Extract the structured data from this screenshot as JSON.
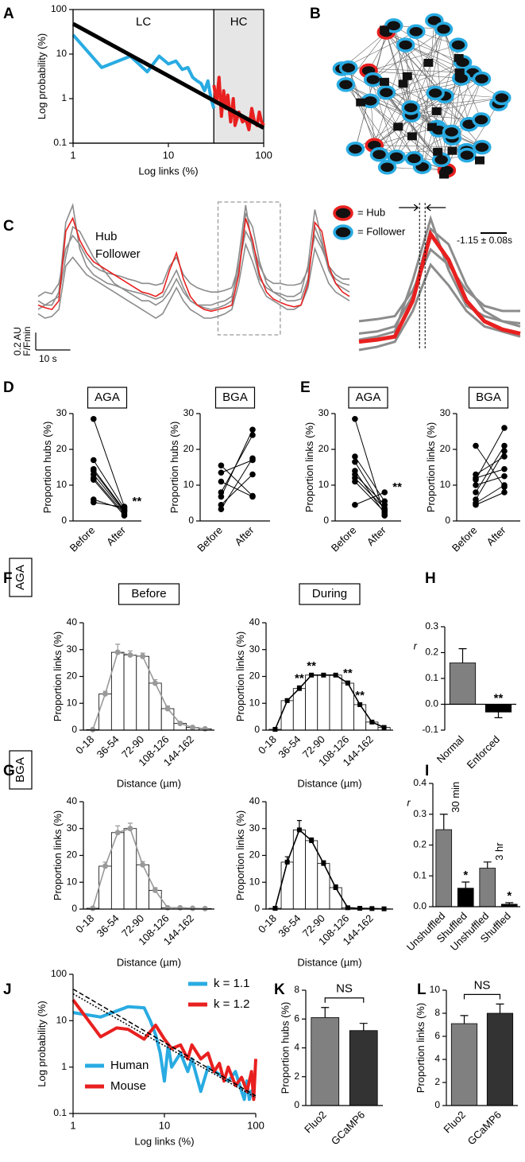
{
  "chart_data": [
    {
      "panel": "A",
      "type": "line",
      "xlabel": "Log links (%)",
      "ylabel": "Log probability (%)",
      "xlog": true,
      "ylog": true,
      "xlim": [
        1,
        100
      ],
      "ylim": [
        0.1,
        100
      ],
      "xticks": [
        1,
        10,
        100
      ],
      "yticks": [
        0.1,
        1,
        10,
        100
      ],
      "regions": [
        {
          "label": "LC",
          "xlim": [
            1,
            30
          ]
        },
        {
          "label": "HC",
          "xlim": [
            30,
            100
          ],
          "color": "#e6e6e6"
        }
      ],
      "series": [
        {
          "color": "#29abe2",
          "x": [
            1,
            2,
            4,
            6,
            8,
            10,
            12,
            14,
            16,
            18,
            20,
            22,
            24,
            26,
            28,
            30
          ],
          "values": [
            27,
            5,
            9,
            4,
            9,
            6,
            7,
            4.5,
            5,
            3,
            2.5,
            2.2,
            1.5,
            2.5,
            1,
            0.6
          ]
        },
        {
          "color": "#e8201f",
          "x": [
            30,
            32,
            34,
            36,
            38,
            40,
            42,
            45,
            48,
            50,
            55,
            60,
            65,
            70,
            75,
            80,
            85,
            90,
            95,
            100
          ],
          "values": [
            2,
            0.8,
            3,
            0.4,
            1.5,
            0.6,
            1.2,
            0.3,
            1,
            0.25,
            0.5,
            0.3,
            0.35,
            0.2,
            0.6,
            0.3,
            0.25,
            0.5,
            0.3,
            0.25
          ]
        }
      ],
      "fits": [
        {
          "color": "#000000",
          "x": [
            1,
            100
          ],
          "values": [
            48,
            0.22
          ]
        }
      ]
    },
    {
      "panel": "B",
      "type": "network",
      "legend": [
        {
          "name": "= Hub",
          "color": "#e8201f"
        },
        {
          "name": "= Follower",
          "color": "#29abe2"
        }
      ]
    },
    {
      "panel": "C",
      "type": "trace",
      "x": [
        0,
        2,
        4,
        6,
        8,
        10,
        12,
        14,
        16,
        18,
        20,
        22,
        24,
        26,
        28,
        30,
        32,
        34,
        36,
        38,
        40,
        42,
        44,
        46,
        48,
        50,
        52,
        54,
        56,
        58,
        60,
        62,
        64,
        66,
        68,
        70,
        72,
        74,
        76,
        78,
        80,
        82,
        84,
        86,
        88,
        90
      ],
      "series": [
        {
          "name": "Follower",
          "color": "#8c8c8c",
          "values": [
            0.1,
            0.05,
            0.05,
            0.2,
            1.0,
            1.2,
            0.7,
            0.5,
            0.4,
            0.35,
            0.3,
            0.28,
            0.25,
            0.22,
            0.2,
            0.18,
            0.15,
            0.12,
            0.15,
            0.3,
            0.45,
            0.25,
            0.1,
            0.05,
            0.02,
            0.0,
            0.02,
            0.05,
            0.1,
            0.6,
            1.2,
            0.7,
            0.35,
            0.25,
            0.2,
            0.18,
            0.15,
            0.15,
            0.2,
            0.5,
            1.15,
            0.8,
            0.45,
            0.35,
            0.3,
            0.28
          ]
        },
        {
          "color": "#8c8c8c",
          "values": [
            -0.05,
            -0.1,
            -0.08,
            0.0,
            0.5,
            0.6,
            0.5,
            0.4,
            0.35,
            0.3,
            0.25,
            0.2,
            0.15,
            0.1,
            0.05,
            0.0,
            -0.05,
            -0.1,
            -0.05,
            0.1,
            0.25,
            0.1,
            0.0,
            -0.05,
            -0.1,
            -0.1,
            -0.08,
            -0.05,
            0.0,
            0.3,
            0.75,
            0.55,
            0.3,
            0.15,
            0.1,
            0.05,
            0.0,
            0.0,
            0.05,
            0.25,
            0.7,
            0.5,
            0.3,
            0.2,
            0.15,
            0.1
          ]
        },
        {
          "color": "#8c8c8c",
          "values": [
            0.15,
            0.2,
            0.18,
            0.3,
            0.7,
            0.85,
            0.75,
            0.6,
            0.5,
            0.45,
            0.42,
            0.4,
            0.38,
            0.35,
            0.33,
            0.3,
            0.3,
            0.28,
            0.3,
            0.5,
            0.6,
            0.4,
            0.3,
            0.25,
            0.22,
            0.2,
            0.2,
            0.22,
            0.25,
            0.5,
            0.9,
            0.75,
            0.5,
            0.35,
            0.3,
            0.3,
            0.28,
            0.28,
            0.3,
            0.45,
            0.85,
            0.7,
            0.5,
            0.4,
            0.35,
            0.35
          ]
        },
        {
          "color": "#8c8c8c",
          "values": [
            0.0,
            0.05,
            0.1,
            0.15,
            0.6,
            0.95,
            0.9,
            0.75,
            0.6,
            0.5,
            0.4,
            0.3,
            0.25,
            0.2,
            0.15,
            0.1,
            0.1,
            0.05,
            0.1,
            0.2,
            0.35,
            0.2,
            0.1,
            0.05,
            0.05,
            0.05,
            0.08,
            0.1,
            0.15,
            0.45,
            1.1,
            0.95,
            0.55,
            0.3,
            0.2,
            0.15,
            0.1,
            0.1,
            0.12,
            0.35,
            0.95,
            0.75,
            0.45,
            0.3,
            0.25,
            0.2
          ]
        },
        {
          "name": "Hub",
          "color": "#e8201f",
          "values": [
            0.05,
            0.02,
            0.0,
            0.1,
            0.9,
            1.05,
            0.8,
            0.65,
            0.55,
            0.5,
            0.45,
            0.4,
            0.35,
            0.3,
            0.25,
            0.2,
            0.18,
            0.15,
            0.2,
            0.45,
            0.65,
            0.35,
            0.15,
            0.05,
            0.0,
            -0.02,
            0.0,
            0.02,
            0.05,
            0.4,
            1.05,
            0.8,
            0.4,
            0.2,
            0.12,
            0.08,
            0.05,
            0.03,
            0.05,
            0.3,
            1.0,
            0.9,
            0.5,
            0.3,
            0.2,
            0.15
          ]
        }
      ],
      "scalebar": {
        "y": 0.2,
        "y_label": "0.2 AU",
        "y_unit": "F/Fmin",
        "x": 10,
        "x_label": "10 s"
      },
      "zoom_xlim": [
        52,
        70
      ],
      "annotation": "-1.15 ± 0.08s"
    },
    {
      "panel": "D",
      "type": "paired",
      "title": "AGA",
      "ylabel": "Proportion hubs (%)",
      "categories": [
        "Before",
        "After"
      ],
      "ylim": [
        0,
        30
      ],
      "yticks": [
        0,
        10,
        20,
        30
      ],
      "values": [
        [
          28.5,
          4
        ],
        [
          17,
          3.5
        ],
        [
          14.5,
          3
        ],
        [
          14,
          2.8
        ],
        [
          13,
          2.5
        ],
        [
          12,
          2
        ],
        [
          11.5,
          1.5
        ],
        [
          6,
          3.2
        ],
        [
          5.2,
          3.8
        ]
      ],
      "significance": [
        null,
        "**"
      ]
    },
    {
      "type": "paired",
      "title": "BGA",
      "ylabel": "Proportion hubs (%)",
      "categories": [
        "Before",
        "After"
      ],
      "ylim": [
        0,
        30
      ],
      "yticks": [
        0,
        10,
        20,
        30
      ],
      "values": [
        [
          15.5,
          7
        ],
        [
          13.5,
          17
        ],
        [
          11,
          6.8
        ],
        [
          8,
          24
        ],
        [
          6.8,
          25.5
        ],
        [
          4.5,
          13
        ],
        [
          3.3,
          17.5
        ]
      ]
    },
    {
      "panel": "E",
      "type": "paired",
      "title": "AGA",
      "ylabel": "Proportion links (%)",
      "categories": [
        "Before",
        "After"
      ],
      "ylim": [
        0,
        30
      ],
      "yticks": [
        0,
        10,
        20,
        30
      ],
      "values": [
        [
          28.5,
          1.5
        ],
        [
          18,
          5.5
        ],
        [
          16.5,
          3
        ],
        [
          14,
          2
        ],
        [
          13,
          4.5
        ],
        [
          12,
          3.5
        ],
        [
          11,
          2.5
        ],
        [
          4.5,
          8
        ]
      ],
      "significance": [
        null,
        "**"
      ]
    },
    {
      "type": "paired",
      "title": "BGA",
      "ylabel": "Proportion links (%)",
      "categories": [
        "Before",
        "After"
      ],
      "ylim": [
        0,
        30
      ],
      "yticks": [
        0,
        10,
        20,
        30
      ],
      "values": [
        [
          21,
          9.5
        ],
        [
          13,
          18
        ],
        [
          12,
          14.5
        ],
        [
          11.5,
          26
        ],
        [
          10,
          12.5
        ],
        [
          8,
          21
        ],
        [
          6,
          19.5
        ],
        [
          5,
          10
        ],
        [
          4.5,
          8
        ]
      ]
    },
    {
      "panel": "F",
      "row_label": "AGA",
      "type": "barline",
      "title": "Before",
      "ylabel": "Proportion links (%)",
      "xlabel": "Distance (µm)",
      "categories": [
        "0-18",
        null,
        "36-54",
        null,
        "72-90",
        null,
        "108-126",
        null,
        "144-162",
        null
      ],
      "ylim": [
        0,
        40
      ],
      "yticks": [
        0,
        10,
        20,
        30,
        40
      ],
      "color": "#999999",
      "values": [
        0.2,
        13.5,
        29,
        28,
        27.5,
        17.5,
        8,
        2.5,
        1,
        0.5
      ],
      "errors": [
        0.1,
        1,
        3,
        1.5,
        1.2,
        1.3,
        1,
        0.5,
        0.3,
        0.2
      ]
    },
    {
      "type": "barline",
      "title": "During",
      "ylabel": "Proportion links (%)",
      "xlabel": "Distance (µm)",
      "categories": [
        "0-18",
        null,
        "36-54",
        null,
        "72-90",
        null,
        "108-126",
        null,
        "144-162",
        null
      ],
      "ylim": [
        0,
        40
      ],
      "yticks": [
        0,
        10,
        20,
        30,
        40
      ],
      "color": "#000000",
      "values": [
        0.3,
        11,
        15.5,
        20.5,
        20.5,
        20.5,
        17.5,
        9.5,
        3,
        1
      ],
      "errors": [
        0.1,
        0.7,
        1,
        0.5,
        0.4,
        0.5,
        0.8,
        0.6,
        0.3,
        0.2
      ],
      "significance": [
        null,
        null,
        "**",
        "**",
        null,
        null,
        "**",
        "**",
        null,
        null
      ]
    },
    {
      "panel": "H",
      "type": "bar",
      "ylabel": "r",
      "categories": [
        "Normal",
        "Enforced"
      ],
      "values": [
        0.16,
        -0.03
      ],
      "errors": [
        0.055,
        0.022
      ],
      "colors": [
        "#808080",
        "#000000"
      ],
      "ylim": [
        -0.1,
        0.3
      ],
      "yticks": [
        -0.1,
        {
          "value": 0,
          "label": "0.0"
        },
        0.1,
        0.2,
        0.3
      ],
      "significance": [
        null,
        "**"
      ]
    },
    {
      "panel": "G",
      "row_label": "BGA",
      "type": "barline",
      "ylabel": "Proportion links (%)",
      "xlabel": "Distance (µm)",
      "categories": [
        "0-18",
        null,
        "36-54",
        null,
        "72-90",
        null,
        "108-126",
        null,
        "144-162",
        null
      ],
      "ylim": [
        0,
        40
      ],
      "yticks": [
        0,
        10,
        20,
        30,
        40
      ],
      "color": "#999999",
      "values": [
        0.3,
        16,
        28.5,
        30,
        16.5,
        7,
        0.5,
        0.5,
        0.3,
        0.2
      ],
      "errors": [
        0.1,
        1.5,
        2.5,
        2,
        1.2,
        1,
        0.2,
        0.2,
        0.1,
        0.1
      ]
    },
    {
      "type": "barline",
      "ylabel": "Proportion links (%)",
      "xlabel": "Distance (µm)",
      "categories": [
        "0-18",
        null,
        "36-54",
        null,
        "72-90",
        null,
        "108-126",
        null,
        "144-162",
        null
      ],
      "ylim": [
        0,
        40
      ],
      "yticks": [
        0,
        10,
        20,
        30,
        40
      ],
      "color": "#000000",
      "values": [
        0.3,
        17.5,
        29.5,
        25.5,
        17,
        8,
        0.5,
        0.3,
        0.2,
        0.1
      ],
      "errors": [
        0.1,
        2,
        3.5,
        1,
        1,
        1,
        0.2,
        0.1,
        0.1,
        0.1
      ]
    },
    {
      "panel": "I",
      "type": "bar",
      "ylabel": "r",
      "categories": [
        "Unshuffled",
        "Shuffled",
        "Unshuffled",
        "Shuffled"
      ],
      "values": [
        0.25,
        0.06,
        0.125,
        0.008
      ],
      "errors": [
        0.05,
        0.02,
        0.02,
        0.005
      ],
      "colors": [
        "#808080",
        "#000000",
        "#808080",
        "#000000"
      ],
      "ylim": [
        0,
        0.4
      ],
      "yticks": [
        {
          "value": 0,
          "label": "0.0"
        },
        0.1,
        0.2,
        0.3,
        0.4
      ],
      "significance": [
        null,
        "*",
        null,
        "*"
      ],
      "group_labels": [
        "30 min",
        "3 hr"
      ]
    },
    {
      "panel": "J",
      "type": "line",
      "xlabel": "Log links (%)",
      "ylabel": "Log probability (%)",
      "xlog": true,
      "ylog": true,
      "xlim": [
        1,
        100
      ],
      "ylim": [
        0.1,
        100
      ],
      "xticks": [
        1,
        10,
        100
      ],
      "yticks": [
        0.1,
        1,
        10,
        100
      ],
      "legend": "lower left",
      "fit_legend": "upper right",
      "series": [
        {
          "name": "Human",
          "color": "#29abe2",
          "x": [
            1,
            2,
            4,
            6,
            7,
            8,
            9,
            10,
            11,
            12,
            15,
            18,
            20,
            25,
            30,
            40,
            50,
            60,
            70,
            75,
            80,
            85,
            90,
            95
          ],
          "values": [
            15,
            12,
            20,
            19,
            10,
            5,
            2,
            0.5,
            3,
            1,
            2,
            0.8,
            1.5,
            0.3,
            1,
            0.7,
            0.5,
            0.8,
            0.3,
            0.2,
            0.5,
            0.2,
            0.3,
            0.35
          ]
        },
        {
          "name": "Mouse",
          "color": "#e8201f",
          "x": [
            1,
            2,
            3,
            4,
            6,
            8,
            10,
            12,
            15,
            18,
            20,
            25,
            30,
            35,
            40,
            45,
            50,
            60,
            70,
            80,
            90,
            95,
            100
          ],
          "values": [
            28,
            4.5,
            7,
            6.5,
            4,
            8,
            4,
            2.5,
            3,
            1.5,
            3,
            1.5,
            2,
            0.8,
            1.2,
            0.5,
            1,
            0.4,
            0.6,
            0.3,
            0.8,
            0.2,
            1.5
          ]
        }
      ],
      "fits": [
        {
          "name": "k = 1.1",
          "color": "#29abe2",
          "x": [
            1,
            100
          ],
          "values": [
            48,
            0.24
          ]
        },
        {
          "name": "k = 1.2",
          "color": "#e8201f",
          "x": [
            1,
            100
          ],
          "values": [
            38,
            0.22
          ]
        }
      ]
    },
    {
      "panel": "K",
      "type": "bar",
      "ylabel": "Proportion hubs (%)",
      "categories": [
        "Fluo2",
        "GCaMP6"
      ],
      "values": [
        6.1,
        5.2
      ],
      "errors": [
        0.7,
        0.5
      ],
      "colors": [
        "#808080",
        "#333333"
      ],
      "ylim": [
        0,
        8
      ],
      "yticks": [
        0,
        2,
        4,
        6,
        8
      ],
      "bracket_label": "NS"
    },
    {
      "panel": "L",
      "type": "bar",
      "ylabel": "Proportion links (%)",
      "categories": [
        "Fluo2",
        "GCaMP6"
      ],
      "values": [
        7.1,
        8.0
      ],
      "errors": [
        0.7,
        0.8
      ],
      "colors": [
        "#808080",
        "#333333"
      ],
      "ylim": [
        0,
        10
      ],
      "yticks": [
        0,
        2,
        4,
        6,
        8,
        10
      ],
      "bracket_label": "NS"
    }
  ]
}
